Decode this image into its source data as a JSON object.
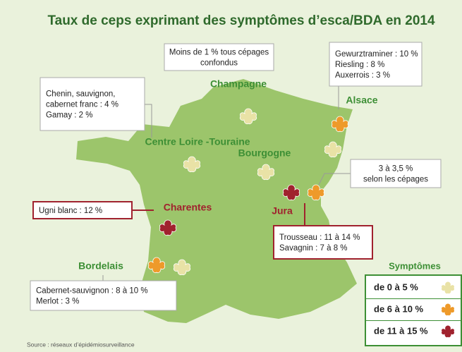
{
  "title": "Taux de ceps exprimant des symptômes d’esca/BDA en 2014",
  "regions": [
    {
      "name": "Champagne",
      "lines": [
        "Moins de 1 % tous cépages",
        "confondus"
      ]
    },
    {
      "name": "Alsace",
      "lines": [
        "Gewurztraminer : 10 %",
        "Riesling : 8 %",
        "Auxerrois : 3 %"
      ]
    },
    {
      "name": "Centre Loire -Touraine",
      "lines": [
        "Chenin, sauvignon,",
        "cabernet franc : 4 %",
        "Gamay : 2 %"
      ]
    },
    {
      "name": "Bourgogne",
      "lines": [
        "3 à 3,5 %",
        "selon les cépages"
      ]
    },
    {
      "name": "Charentes",
      "lines": [
        "Ugni blanc : 12 %"
      ]
    },
    {
      "name": "Jura",
      "lines": [
        "Trousseau : 11 à 14 %",
        "Savagnin : 7 à 8 %"
      ]
    },
    {
      "name": "Bordelais",
      "lines": [
        "Cabernet-sauvignon : 8 à 10 %",
        "Merlot : 3 %"
      ]
    }
  ],
  "legend": {
    "title": "Symptômes",
    "items": [
      {
        "label": "de 0 à 5 %",
        "color": "#e9e2a6"
      },
      {
        "label": "de 6 à 10 %",
        "color": "#ee9a2a"
      },
      {
        "label": "de 11 à 15 %",
        "color": "#a0222e"
      }
    ]
  },
  "source": "Source : réseaux d’épidémiosurveillance"
}
